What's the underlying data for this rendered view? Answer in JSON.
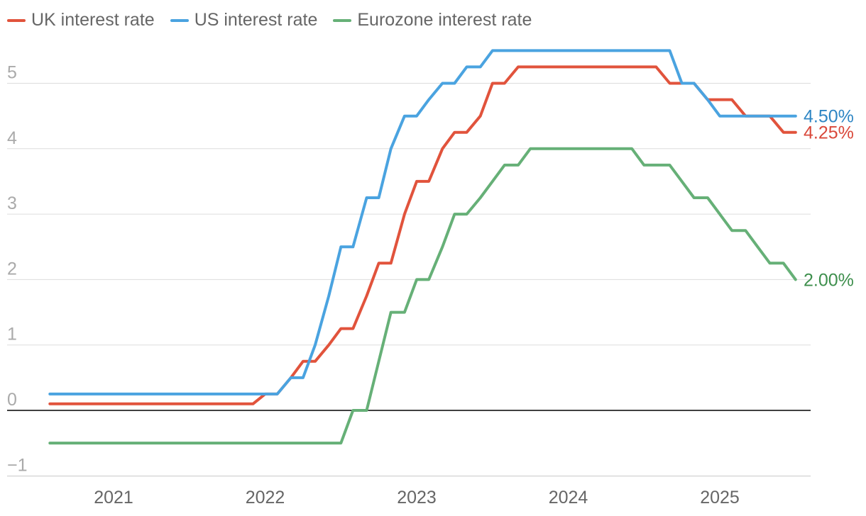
{
  "colors": {
    "uk": "#e1533c",
    "us": "#4aa3e0",
    "ez": "#66b077",
    "grid": "#dddddd",
    "zero": "#000000",
    "ticks": "#aaaaaa",
    "xticks": "#666666"
  },
  "legend": [
    {
      "label": "UK interest rate",
      "color": "#e1533c"
    },
    {
      "label": "US interest rate",
      "color": "#4aa3e0"
    },
    {
      "label": "Eurozone interest rate",
      "color": "#66b077"
    }
  ],
  "chart_data": {
    "type": "line",
    "ylim": [
      -1,
      5.5
    ],
    "xlim": [
      2020.6,
      2025.5
    ],
    "y_ticks": [
      -1,
      0,
      1,
      2,
      3,
      4,
      5
    ],
    "y_tick_labels": [
      "−1",
      "0",
      "1",
      "2",
      "3",
      "4",
      "5"
    ],
    "x_ticks": [
      2021,
      2022,
      2023,
      2024,
      2025
    ],
    "x_tick_labels": [
      "2021",
      "2022",
      "2023",
      "2024",
      "2025"
    ],
    "grid": true,
    "legend_position": "top-left",
    "end_labels": [
      {
        "series": "US interest rate",
        "text": "4.50%"
      },
      {
        "series": "UK interest rate",
        "text": "4.25%"
      },
      {
        "series": "Eurozone interest rate",
        "text": "2.00%"
      }
    ],
    "series": [
      {
        "name": "UK interest rate",
        "color": "#e1533c",
        "points": [
          [
            2020.58,
            0.1
          ],
          [
            2021.92,
            0.1
          ],
          [
            2022.0,
            0.25
          ],
          [
            2022.08,
            0.25
          ],
          [
            2022.17,
            0.5
          ],
          [
            2022.25,
            0.75
          ],
          [
            2022.33,
            0.75
          ],
          [
            2022.42,
            1.0
          ],
          [
            2022.5,
            1.25
          ],
          [
            2022.58,
            1.25
          ],
          [
            2022.67,
            1.75
          ],
          [
            2022.75,
            2.25
          ],
          [
            2022.83,
            2.25
          ],
          [
            2022.92,
            3.0
          ],
          [
            2023.0,
            3.5
          ],
          [
            2023.08,
            3.5
          ],
          [
            2023.17,
            4.0
          ],
          [
            2023.25,
            4.25
          ],
          [
            2023.33,
            4.25
          ],
          [
            2023.42,
            4.5
          ],
          [
            2023.5,
            5.0
          ],
          [
            2023.58,
            5.0
          ],
          [
            2023.67,
            5.25
          ],
          [
            2024.58,
            5.25
          ],
          [
            2024.67,
            5.0
          ],
          [
            2024.83,
            5.0
          ],
          [
            2024.92,
            4.75
          ],
          [
            2025.08,
            4.75
          ],
          [
            2025.17,
            4.5
          ],
          [
            2025.33,
            4.5
          ],
          [
            2025.42,
            4.25
          ],
          [
            2025.5,
            4.25
          ]
        ]
      },
      {
        "name": "US interest rate",
        "color": "#4aa3e0",
        "points": [
          [
            2020.58,
            0.25
          ],
          [
            2022.08,
            0.25
          ],
          [
            2022.17,
            0.5
          ],
          [
            2022.25,
            0.5
          ],
          [
            2022.33,
            1.0
          ],
          [
            2022.42,
            1.75
          ],
          [
            2022.5,
            2.5
          ],
          [
            2022.58,
            2.5
          ],
          [
            2022.67,
            3.25
          ],
          [
            2022.75,
            3.25
          ],
          [
            2022.83,
            4.0
          ],
          [
            2022.92,
            4.5
          ],
          [
            2023.0,
            4.5
          ],
          [
            2023.08,
            4.75
          ],
          [
            2023.17,
            5.0
          ],
          [
            2023.25,
            5.0
          ],
          [
            2023.33,
            5.25
          ],
          [
            2023.42,
            5.25
          ],
          [
            2023.5,
            5.5
          ],
          [
            2024.67,
            5.5
          ],
          [
            2024.75,
            5.0
          ],
          [
            2024.83,
            5.0
          ],
          [
            2024.92,
            4.75
          ],
          [
            2025.0,
            4.5
          ],
          [
            2025.5,
            4.5
          ]
        ]
      },
      {
        "name": "Eurozone interest rate",
        "color": "#66b077",
        "points": [
          [
            2020.58,
            -0.5
          ],
          [
            2022.5,
            -0.5
          ],
          [
            2022.58,
            0.0
          ],
          [
            2022.67,
            0.0
          ],
          [
            2022.75,
            0.75
          ],
          [
            2022.83,
            1.5
          ],
          [
            2022.92,
            1.5
          ],
          [
            2023.0,
            2.0
          ],
          [
            2023.08,
            2.0
          ],
          [
            2023.17,
            2.5
          ],
          [
            2023.25,
            3.0
          ],
          [
            2023.33,
            3.0
          ],
          [
            2023.42,
            3.25
          ],
          [
            2023.5,
            3.5
          ],
          [
            2023.58,
            3.75
          ],
          [
            2023.67,
            3.75
          ],
          [
            2023.75,
            4.0
          ],
          [
            2024.42,
            4.0
          ],
          [
            2024.5,
            3.75
          ],
          [
            2024.67,
            3.75
          ],
          [
            2024.75,
            3.5
          ],
          [
            2024.83,
            3.25
          ],
          [
            2024.92,
            3.25
          ],
          [
            2025.0,
            3.0
          ],
          [
            2025.08,
            2.75
          ],
          [
            2025.17,
            2.75
          ],
          [
            2025.25,
            2.5
          ],
          [
            2025.33,
            2.25
          ],
          [
            2025.42,
            2.25
          ],
          [
            2025.5,
            2.0
          ]
        ]
      }
    ]
  }
}
